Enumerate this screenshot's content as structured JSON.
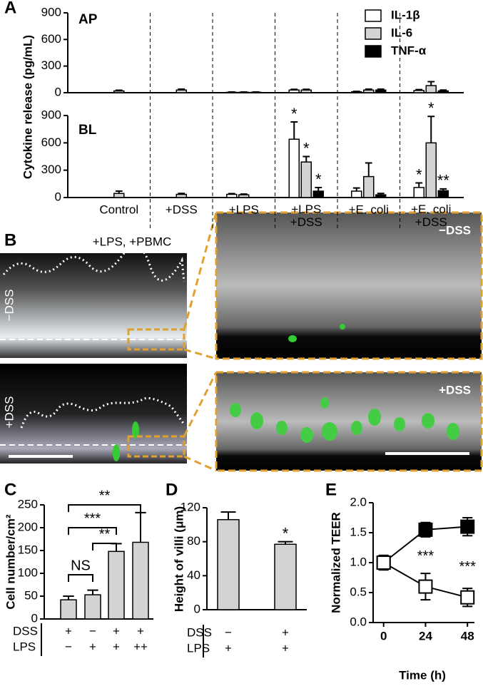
{
  "figure": {
    "panel_labels": [
      "A",
      "B",
      "C",
      "D",
      "E"
    ],
    "image_panel": {
      "caption": "+LPS, +PBMC",
      "labels": [
        "−DSS",
        "+DSS",
        "−DSS",
        "+DSS"
      ]
    }
  },
  "chart_data": [
    {
      "type": "bar",
      "title": "AP",
      "ylabel": "Cytokine release (pg/mL)",
      "ylim": [
        0,
        900
      ],
      "yticks": [
        0,
        300,
        600,
        900
      ],
      "legend": "top-right",
      "series": [
        {
          "name": "IL-1β",
          "color": "#ffffff",
          "values": [
            null,
            null,
            5,
            30,
            10,
            25
          ],
          "errors": [
            null,
            null,
            3,
            8,
            5,
            10
          ]
        },
        {
          "name": "IL-6",
          "color": "#d3d3d3",
          "values": [
            20,
            30,
            5,
            30,
            30,
            80
          ],
          "errors": [
            8,
            10,
            3,
            8,
            10,
            45
          ]
        },
        {
          "name": "TNF-α",
          "color": "#000000",
          "values": [
            null,
            null,
            5,
            null,
            30,
            20
          ],
          "errors": [
            null,
            null,
            3,
            null,
            10,
            10
          ]
        }
      ]
    },
    {
      "type": "bar",
      "title": "BL",
      "categories": [
        "Control",
        "+DSS",
        "+LPS",
        "+LPS\n+DSS",
        "+E. coli",
        "+E. coli\n+DSS"
      ],
      "ylim": [
        0,
        900
      ],
      "yticks": [
        0,
        300,
        600,
        900
      ],
      "series": [
        {
          "color": "#ffffff",
          "values": [
            null,
            null,
            35,
            640,
            70,
            110
          ],
          "errors": [
            null,
            null,
            8,
            190,
            35,
            50
          ],
          "significance": [
            null,
            null,
            null,
            "*",
            null,
            "*"
          ]
        },
        {
          "color": "#d3d3d3",
          "values": [
            45,
            35,
            30,
            390,
            230,
            600
          ],
          "errors": [
            25,
            10,
            8,
            60,
            150,
            290
          ],
          "significance": [
            null,
            null,
            null,
            "*",
            null,
            "*"
          ]
        },
        {
          "color": "#000000",
          "values": [
            null,
            null,
            null,
            70,
            30,
            75
          ],
          "errors": [
            null,
            null,
            null,
            40,
            15,
            20
          ],
          "significance": [
            null,
            null,
            null,
            "*",
            null,
            "**"
          ]
        }
      ]
    },
    {
      "type": "bar",
      "ylabel": "Cell number/cm²",
      "ylim": [
        0,
        250
      ],
      "yticks": [
        0,
        50,
        100,
        150,
        200,
        250
      ],
      "series": [
        {
          "color": "#d3d3d3",
          "values": [
            42,
            53,
            148,
            168
          ],
          "errors": [
            8,
            10,
            17,
            65
          ]
        }
      ],
      "brackets": [
        {
          "from": 0,
          "to": 1,
          "label": "NS"
        },
        {
          "from": 1,
          "to": 2,
          "label": "**"
        },
        {
          "from": 0,
          "to": 2,
          "label": "***"
        },
        {
          "from": 0,
          "to": 3,
          "label": "**"
        }
      ],
      "table": {
        "rows": [
          {
            "label": "DSS",
            "cells": [
              "+",
              "−",
              "+",
              "+"
            ]
          },
          {
            "label": "LPS",
            "cells": [
              "−",
              "+",
              "+",
              "++"
            ]
          }
        ]
      }
    },
    {
      "type": "bar",
      "ylabel": "Height of villi (μm)",
      "ylim": [
        0,
        120
      ],
      "yticks": [
        0,
        40,
        80,
        120
      ],
      "series": [
        {
          "color": "#d3d3d3",
          "values": [
            106,
            77
          ],
          "errors": [
            9,
            3
          ],
          "significance": [
            null,
            "*"
          ]
        }
      ],
      "table": {
        "rows": [
          {
            "label": "DSS",
            "cells": [
              "−",
              "+"
            ]
          },
          {
            "label": "LPS",
            "cells": [
              "+",
              "+"
            ]
          }
        ]
      }
    },
    {
      "type": "line",
      "xlabel": "Time (h)",
      "ylabel": "Normalized TEER",
      "x": [
        0,
        24,
        48
      ],
      "xlim": [
        -6,
        52
      ],
      "xticks": [
        0,
        24,
        48
      ],
      "ylim": [
        0,
        2
      ],
      "yticks": [
        {
          "value": 0,
          "label": "0.0"
        },
        0.5,
        {
          "value": 1,
          "label": "1.0"
        },
        1.5,
        {
          "value": 2,
          "label": "2.0"
        }
      ],
      "series": [
        {
          "color": "#000000",
          "values": [
            1.0,
            1.55,
            1.6
          ],
          "errors": [
            0.12,
            0.12,
            0.15
          ]
        },
        {
          "color": "#ffffff",
          "values": [
            1.0,
            0.6,
            0.42
          ],
          "errors": [
            0.12,
            0.22,
            0.15
          ],
          "significance": [
            null,
            "***",
            "***"
          ]
        }
      ]
    }
  ]
}
